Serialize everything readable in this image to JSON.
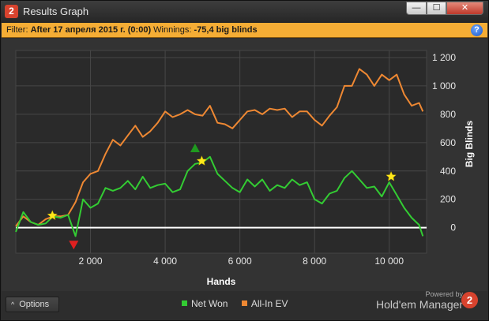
{
  "window": {
    "app_icon": "2",
    "title": "Results Graph",
    "min_label": "—",
    "max_label": "☐",
    "close_label": "✕"
  },
  "filter": {
    "label": "Filter:",
    "date_text": "After 17 апреля 2015 г. (0:00)",
    "winnings_label": "Winnings:",
    "winnings_value": "-75,4 big blinds",
    "help_label": "?"
  },
  "footer": {
    "options_caret": "^",
    "options_label": "Options",
    "powered_by": "Powered by",
    "brand": "Hold'em Manager",
    "brand_logo": "2"
  },
  "colors": {
    "net_won": "#33cc33",
    "all_in_ev": "#ee8833",
    "zero_line": "#ffffff",
    "star": "#ffe81a",
    "peak_marker": "#1f9a1f",
    "low_marker": "#e02020"
  },
  "chart_data": {
    "type": "line",
    "xlabel": "Hands",
    "ylabel": "Big Blinds",
    "xlim": [
      0,
      11000
    ],
    "ylim": [
      -180,
      1250
    ],
    "x_ticks": [
      2000,
      4000,
      6000,
      8000,
      10000
    ],
    "x_tick_labels": [
      "2 000",
      "4 000",
      "6 000",
      "8 000",
      "10 000"
    ],
    "y_ticks": [
      0,
      200,
      400,
      600,
      800,
      1000,
      1200
    ],
    "y_tick_labels": [
      "0",
      "200",
      "400",
      "600",
      "800",
      "1 000",
      "1 200"
    ],
    "grid": true,
    "legend_position": "bottom-center",
    "x": [
      0,
      200,
      400,
      600,
      800,
      1000,
      1200,
      1400,
      1600,
      1800,
      2000,
      2200,
      2400,
      2600,
      2800,
      3000,
      3200,
      3400,
      3600,
      3800,
      4000,
      4200,
      4400,
      4600,
      4800,
      5000,
      5200,
      5400,
      5600,
      5800,
      6000,
      6200,
      6400,
      6600,
      6800,
      7000,
      7200,
      7400,
      7600,
      7800,
      8000,
      8200,
      8400,
      8600,
      8800,
      9000,
      9200,
      9400,
      9600,
      9800,
      10000,
      10200,
      10400,
      10600,
      10800,
      10900
    ],
    "series": [
      {
        "name": "Net Won",
        "color_key": "net_won",
        "values": [
          -30,
          110,
          40,
          20,
          30,
          80,
          70,
          90,
          -60,
          200,
          140,
          170,
          280,
          260,
          280,
          330,
          270,
          360,
          280,
          300,
          310,
          250,
          270,
          400,
          450,
          460,
          500,
          380,
          330,
          280,
          250,
          340,
          290,
          340,
          260,
          300,
          280,
          340,
          300,
          320,
          200,
          170,
          240,
          260,
          350,
          400,
          340,
          280,
          290,
          220,
          320,
          230,
          140,
          70,
          20,
          -60
        ]
      },
      {
        "name": "All-In EV",
        "color_key": "all_in_ev",
        "values": [
          10,
          80,
          40,
          20,
          60,
          80,
          80,
          90,
          180,
          320,
          380,
          400,
          520,
          620,
          580,
          650,
          720,
          640,
          680,
          740,
          820,
          780,
          800,
          830,
          800,
          790,
          860,
          740,
          730,
          700,
          760,
          820,
          830,
          800,
          840,
          830,
          840,
          780,
          820,
          820,
          760,
          720,
          790,
          850,
          1000,
          1000,
          1120,
          1080,
          1000,
          1080,
          1040,
          1080,
          940,
          860,
          880,
          820
        ]
      }
    ],
    "markers": [
      {
        "type": "star",
        "x": 980,
        "y": 85
      },
      {
        "type": "star",
        "x": 4980,
        "y": 470
      },
      {
        "type": "star",
        "x": 10050,
        "y": 360
      },
      {
        "type": "peak",
        "x": 4800,
        "y": 560
      },
      {
        "type": "low",
        "x": 1550,
        "y": -120
      }
    ]
  }
}
